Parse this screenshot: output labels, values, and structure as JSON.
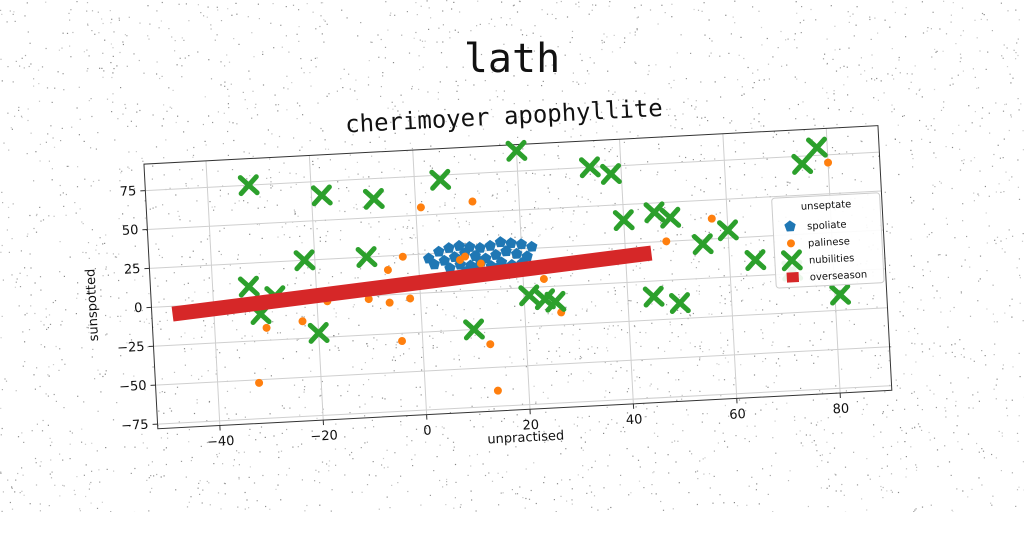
{
  "figure": {
    "suptitle": "lath"
  },
  "chart_data": {
    "type": "scatter",
    "title": "cherimoyer apophyllite",
    "xlabel": "unpractised",
    "ylabel": "sunspotted",
    "xlim": [
      -52,
      90
    ],
    "ylim": [
      -78,
      92
    ],
    "xticks": [
      -40,
      -20,
      0,
      20,
      40,
      60,
      80
    ],
    "yticks": [
      -75,
      -50,
      -25,
      0,
      25,
      50,
      75
    ],
    "grid": true,
    "legend": {
      "title": "unseptate",
      "placement": "right"
    },
    "series": [
      {
        "name": "spoliate",
        "kind": "scatter",
        "marker": "pentagon",
        "color": "#1f77b4",
        "points": [
          [
            2,
            22
          ],
          [
            4,
            26
          ],
          [
            6,
            28
          ],
          [
            8,
            29
          ],
          [
            10,
            28
          ],
          [
            12,
            27
          ],
          [
            14,
            28
          ],
          [
            16,
            30
          ],
          [
            18,
            29
          ],
          [
            20,
            28
          ],
          [
            22,
            26
          ],
          [
            3,
            18
          ],
          [
            5,
            20
          ],
          [
            7,
            22
          ],
          [
            9,
            24
          ],
          [
            11,
            22
          ],
          [
            13,
            20
          ],
          [
            15,
            22
          ],
          [
            17,
            24
          ],
          [
            19,
            22
          ],
          [
            21,
            20
          ],
          [
            6,
            15
          ],
          [
            8,
            17
          ],
          [
            10,
            16
          ],
          [
            12,
            18
          ],
          [
            14,
            15
          ],
          [
            16,
            17
          ],
          [
            18,
            15
          ],
          [
            20,
            16
          ],
          [
            9,
            12
          ],
          [
            11,
            14
          ],
          [
            13,
            11
          ],
          [
            15,
            13
          ],
          [
            17,
            12
          ]
        ]
      },
      {
        "name": "palinese",
        "kind": "scatter",
        "marker": "circle",
        "color": "#ff7f0e",
        "points": [
          [
            -32,
            -52
          ],
          [
            -30,
            -17
          ],
          [
            -23,
            -14
          ],
          [
            -4,
            -30
          ],
          [
            -6,
            -5
          ],
          [
            -2,
            -3
          ],
          [
            -3,
            24
          ],
          [
            -6,
            16
          ],
          [
            1,
            55
          ],
          [
            8,
            20
          ],
          [
            9,
            22
          ],
          [
            11,
            57
          ],
          [
            12,
            17
          ],
          [
            13,
            -35
          ],
          [
            14,
            -65
          ],
          [
            21,
            10
          ],
          [
            24,
            5
          ],
          [
            27,
            -17
          ],
          [
            48,
            25
          ],
          [
            57,
            38
          ],
          [
            80,
            70
          ],
          [
            -18,
            -2
          ],
          [
            -10,
            -2
          ]
        ]
      },
      {
        "name": "nubilities",
        "kind": "scatter",
        "marker": "x",
        "color": "#2ca02c",
        "points": [
          [
            -32,
            75
          ],
          [
            -33,
            10
          ],
          [
            -31,
            -8
          ],
          [
            -28,
            3
          ],
          [
            -20,
            -22
          ],
          [
            -22,
            25
          ],
          [
            -18,
            66
          ],
          [
            -10,
            25
          ],
          [
            -8,
            62
          ],
          [
            5,
            72
          ],
          [
            10,
            -25
          ],
          [
            20,
            88
          ],
          [
            21,
            -5
          ],
          [
            24,
            -8
          ],
          [
            26,
            -10
          ],
          [
            34,
            75
          ],
          [
            38,
            70
          ],
          [
            40,
            40
          ],
          [
            46,
            44
          ],
          [
            49,
            40
          ],
          [
            45,
            -10
          ],
          [
            50,
            -15
          ],
          [
            55,
            22
          ],
          [
            60,
            30
          ],
          [
            65,
            10
          ],
          [
            72,
            2
          ],
          [
            75,
            70
          ],
          [
            78,
            80
          ],
          [
            81,
            -15
          ]
        ]
      },
      {
        "name": "overseason",
        "kind": "line",
        "marker": "square",
        "color": "#d62728",
        "points": [
          [
            -48,
            -5
          ],
          [
            45,
            18
          ]
        ]
      }
    ]
  }
}
